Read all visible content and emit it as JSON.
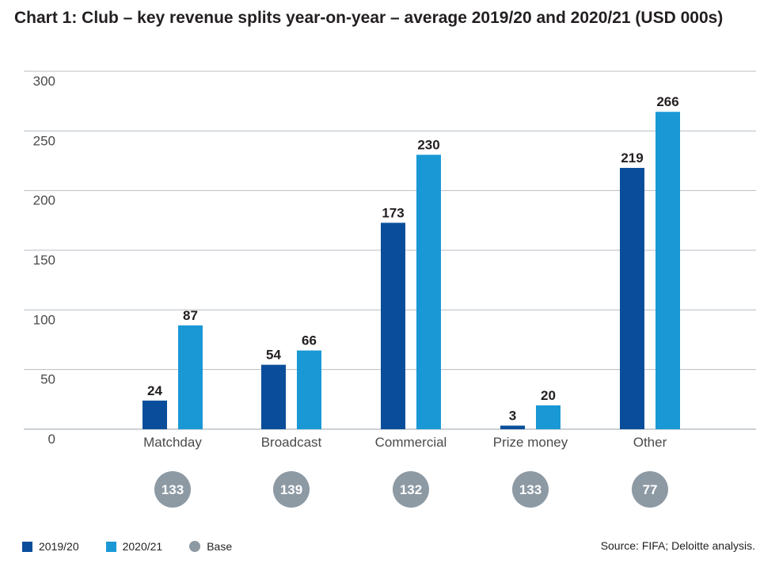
{
  "chart_data": {
    "type": "bar",
    "title": "Chart 1: Club – key revenue splits year-on-year – average 2019/20 and 2020/21 (USD 000s)",
    "categories": [
      "Matchday",
      "Broadcast",
      "Commercial",
      "Prize money",
      "Other"
    ],
    "series": [
      {
        "name": "2019/20",
        "values": [
          24,
          54,
          173,
          3,
          219
        ],
        "color": "#0a4e9b"
      },
      {
        "name": "2020/21",
        "values": [
          87,
          66,
          230,
          20,
          266
        ],
        "color": "#1a98d5"
      }
    ],
    "base": {
      "name": "Base",
      "values": [
        133,
        139,
        132,
        133,
        77
      ],
      "color": "#8d99a3"
    },
    "ylim": [
      0,
      300
    ],
    "yticks": [
      0,
      50,
      100,
      150,
      200,
      250,
      300
    ],
    "grid": true,
    "xlabel": "",
    "ylabel": ""
  },
  "source": "Source: FIFA; Deloitte analysis."
}
